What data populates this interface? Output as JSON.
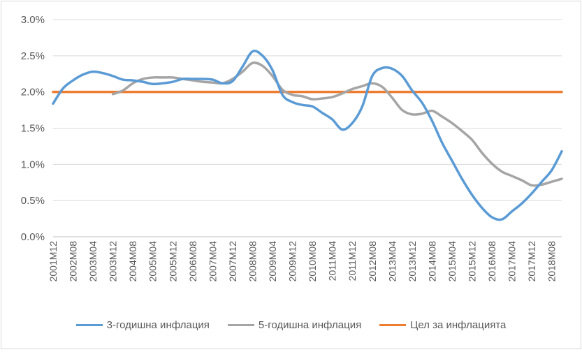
{
  "chart_data": {
    "type": "line",
    "title": "",
    "xlabel": "",
    "ylabel": "",
    "ylim": [
      0,
      0.03
    ],
    "y_ticks": [
      {
        "value": 0.0,
        "label": "0.0%"
      },
      {
        "value": 0.005,
        "label": "0.5%"
      },
      {
        "value": 0.01,
        "label": "1.0%"
      },
      {
        "value": 0.015,
        "label": "1.5%"
      },
      {
        "value": 0.02,
        "label": "2.0%"
      },
      {
        "value": 0.025,
        "label": "2.5%"
      },
      {
        "value": 0.03,
        "label": "3.0%"
      }
    ],
    "x_ticks": [
      "2001M12",
      "2002M08",
      "2003M04",
      "2003M12",
      "2004M08",
      "2005M04",
      "2005M12",
      "2006M08",
      "2007M04",
      "2007M12",
      "2008M08",
      "2009M04",
      "2009M12",
      "2010M08",
      "2011M04",
      "2011M12",
      "2012M08",
      "2013M04",
      "2013M12",
      "2014M08",
      "2015M04",
      "2015M12",
      "2016M08",
      "2017M04",
      "2017M12",
      "2018M08"
    ],
    "grid": true,
    "legend_position": "bottom",
    "series": [
      {
        "name": "3-годишна инфлация",
        "color": "#5b9bd5",
        "points": [
          [
            "2001M12",
            0.0184
          ],
          [
            "2002M04",
            0.0205
          ],
          [
            "2002M08",
            0.0216
          ],
          [
            "2002M12",
            0.0224
          ],
          [
            "2003M04",
            0.0228
          ],
          [
            "2003M08",
            0.0226
          ],
          [
            "2003M12",
            0.0222
          ],
          [
            "2004M04",
            0.0217
          ],
          [
            "2004M08",
            0.0216
          ],
          [
            "2004M12",
            0.0214
          ],
          [
            "2005M04",
            0.0211
          ],
          [
            "2005M08",
            0.0212
          ],
          [
            "2005M12",
            0.0214
          ],
          [
            "2006M04",
            0.0218
          ],
          [
            "2006M08",
            0.0218
          ],
          [
            "2006M12",
            0.0218
          ],
          [
            "2007M04",
            0.0217
          ],
          [
            "2007M08",
            0.0212
          ],
          [
            "2007M12",
            0.0215
          ],
          [
            "2008M04",
            0.0235
          ],
          [
            "2008M08",
            0.0256
          ],
          [
            "2008M12",
            0.025
          ],
          [
            "2009M04",
            0.023
          ],
          [
            "2009M08",
            0.0196
          ],
          [
            "2009M12",
            0.0186
          ],
          [
            "2010M04",
            0.0182
          ],
          [
            "2010M08",
            0.018
          ],
          [
            "2010M12",
            0.0171
          ],
          [
            "2011M04",
            0.0162
          ],
          [
            "2011M08",
            0.0148
          ],
          [
            "2011M12",
            0.0157
          ],
          [
            "2012M04",
            0.018
          ],
          [
            "2012M08",
            0.0222
          ],
          [
            "2012M12",
            0.0233
          ],
          [
            "2013M04",
            0.0232
          ],
          [
            "2013M08",
            0.0222
          ],
          [
            "2013M12",
            0.0202
          ],
          [
            "2014M04",
            0.0185
          ],
          [
            "2014M08",
            0.016
          ],
          [
            "2014M12",
            0.013
          ],
          [
            "2015M04",
            0.0105
          ],
          [
            "2015M08",
            0.008
          ],
          [
            "2015M12",
            0.0058
          ],
          [
            "2016M04",
            0.004
          ],
          [
            "2016M08",
            0.0027
          ],
          [
            "2016M12",
            0.0024
          ],
          [
            "2017M04",
            0.0035
          ],
          [
            "2017M08",
            0.0046
          ],
          [
            "2017M12",
            0.006
          ],
          [
            "2018M04",
            0.0076
          ],
          [
            "2018M08",
            0.0092
          ],
          [
            "2018M12",
            0.0118
          ]
        ]
      },
      {
        "name": "5-годишна инфлация",
        "color": "#a5a5a5",
        "points": [
          [
            "2003M12",
            0.0197
          ],
          [
            "2004M04",
            0.0202
          ],
          [
            "2004M08",
            0.0212
          ],
          [
            "2004M12",
            0.0218
          ],
          [
            "2005M04",
            0.022
          ],
          [
            "2005M08",
            0.022
          ],
          [
            "2005M12",
            0.022
          ],
          [
            "2006M04",
            0.0218
          ],
          [
            "2006M08",
            0.0216
          ],
          [
            "2006M12",
            0.0214
          ],
          [
            "2007M04",
            0.0213
          ],
          [
            "2007M08",
            0.0212
          ],
          [
            "2007M12",
            0.0218
          ],
          [
            "2008M04",
            0.0228
          ],
          [
            "2008M08",
            0.024
          ],
          [
            "2008M12",
            0.0236
          ],
          [
            "2009M04",
            0.0222
          ],
          [
            "2009M08",
            0.0203
          ],
          [
            "2009M12",
            0.0196
          ],
          [
            "2010M04",
            0.0194
          ],
          [
            "2010M08",
            0.019
          ],
          [
            "2010M12",
            0.0191
          ],
          [
            "2011M04",
            0.0193
          ],
          [
            "2011M08",
            0.0198
          ],
          [
            "2011M12",
            0.0204
          ],
          [
            "2012M04",
            0.0208
          ],
          [
            "2012M08",
            0.0212
          ],
          [
            "2012M12",
            0.0207
          ],
          [
            "2013M04",
            0.0192
          ],
          [
            "2013M08",
            0.0175
          ],
          [
            "2013M12",
            0.0169
          ],
          [
            "2014M04",
            0.017
          ],
          [
            "2014M08",
            0.0174
          ],
          [
            "2014M12",
            0.0166
          ],
          [
            "2015M04",
            0.0157
          ],
          [
            "2015M08",
            0.0146
          ],
          [
            "2015M12",
            0.0134
          ],
          [
            "2016M04",
            0.0116
          ],
          [
            "2016M08",
            0.0101
          ],
          [
            "2016M12",
            0.009
          ],
          [
            "2017M04",
            0.0084
          ],
          [
            "2017M08",
            0.0078
          ],
          [
            "2017M12",
            0.0071
          ],
          [
            "2018M04",
            0.0072
          ],
          [
            "2018M08",
            0.0076
          ],
          [
            "2018M12",
            0.008
          ]
        ]
      },
      {
        "name": "Цел за инфлацията",
        "color": "#ed7d31",
        "points": [
          [
            "2001M12",
            0.02
          ],
          [
            "2018M12",
            0.02
          ]
        ]
      }
    ]
  }
}
